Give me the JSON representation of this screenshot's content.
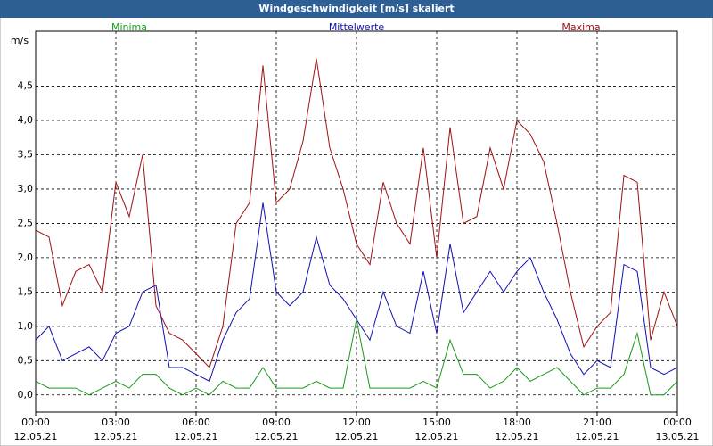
{
  "chart_data": {
    "type": "line",
    "title": "Windgeschwindigkeit [m/s] skaliert",
    "y_label": "m/s",
    "x": [
      0,
      0.5,
      1,
      1.5,
      2,
      2.5,
      3,
      3.5,
      4,
      4.5,
      5,
      5.5,
      6,
      6.5,
      7,
      7.5,
      8,
      8.5,
      9,
      9.5,
      10,
      10.5,
      11,
      11.5,
      12,
      12.5,
      13,
      13.5,
      14,
      14.5,
      15,
      15.5,
      16,
      16.5,
      17,
      17.5,
      18,
      18.5,
      19,
      19.5,
      20,
      20.5,
      21,
      21.5,
      22,
      22.5,
      23,
      23.5,
      24
    ],
    "series": [
      {
        "name": "Minima",
        "color": "#1a9a1a",
        "values": [
          0.2,
          0.1,
          0.1,
          0.1,
          0.0,
          0.1,
          0.2,
          0.1,
          0.3,
          0.3,
          0.1,
          0.0,
          0.1,
          0.0,
          0.2,
          0.1,
          0.1,
          0.4,
          0.1,
          0.1,
          0.1,
          0.2,
          0.1,
          0.1,
          1.1,
          0.1,
          0.1,
          0.1,
          0.1,
          0.2,
          0.1,
          0.8,
          0.3,
          0.3,
          0.1,
          0.2,
          0.4,
          0.2,
          0.3,
          0.4,
          0.2,
          0.0,
          0.1,
          0.1,
          0.3,
          0.9,
          0.0,
          0.0,
          0.2
        ]
      },
      {
        "name": "Mittelwerte",
        "color": "#1010b0",
        "values": [
          0.8,
          1.0,
          0.5,
          0.6,
          0.7,
          0.5,
          0.9,
          1.0,
          1.5,
          1.6,
          0.4,
          0.4,
          0.3,
          0.2,
          0.8,
          1.2,
          1.4,
          2.8,
          1.5,
          1.3,
          1.5,
          2.3,
          1.6,
          1.4,
          1.1,
          0.8,
          1.5,
          1.0,
          0.9,
          1.8,
          0.9,
          2.2,
          1.2,
          1.5,
          1.8,
          1.5,
          1.8,
          2.0,
          1.5,
          1.1,
          0.6,
          0.3,
          0.5,
          0.4,
          1.9,
          1.8,
          0.4,
          0.3,
          0.4
        ]
      },
      {
        "name": "Maxima",
        "color": "#a01010",
        "values": [
          2.4,
          2.3,
          1.3,
          1.8,
          1.9,
          1.5,
          3.1,
          2.6,
          3.5,
          1.3,
          0.9,
          0.8,
          0.6,
          0.4,
          1.0,
          2.5,
          2.8,
          4.8,
          2.8,
          3.0,
          3.7,
          4.9,
          3.6,
          3.0,
          2.2,
          1.9,
          3.1,
          2.5,
          2.2,
          3.6,
          2.0,
          3.9,
          2.5,
          2.6,
          3.6,
          3.0,
          4.0,
          3.8,
          3.4,
          2.5,
          1.5,
          0.7,
          1.0,
          1.2,
          3.2,
          3.1,
          0.8,
          1.5,
          1.0
        ]
      }
    ],
    "xlim": [
      0,
      24
    ],
    "xticks": [
      {
        "value": 0,
        "label": "00:00"
      },
      {
        "value": 3,
        "label": "03:00"
      },
      {
        "value": 6,
        "label": "06:00"
      },
      {
        "value": 9,
        "label": "09:00"
      },
      {
        "value": 12,
        "label": "12:00"
      },
      {
        "value": 15,
        "label": "15:00"
      },
      {
        "value": 18,
        "label": "18:00"
      },
      {
        "value": 21,
        "label": "21:00"
      },
      {
        "value": 24,
        "label": "00:00"
      }
    ],
    "xtick_dates": [
      "12.05.21",
      "12.05.21",
      "12.05.21",
      "12.05.21",
      "12.05.21",
      "12.05.21",
      "12.05.21",
      "12.05.21",
      "13.05.21"
    ],
    "ylim": [
      -0.25,
      5.3
    ],
    "yticks": [
      {
        "value": 0,
        "label": "0,0"
      },
      {
        "value": 0.5,
        "label": "0,5"
      },
      {
        "value": 1,
        "label": "1,0"
      },
      {
        "value": 1.5,
        "label": "1,5"
      },
      {
        "value": 2,
        "label": "2,0"
      },
      {
        "value": 2.5,
        "label": "2,5"
      },
      {
        "value": 3,
        "label": "3,0"
      },
      {
        "value": 3.5,
        "label": "3,5"
      },
      {
        "value": 4,
        "label": "4,0"
      },
      {
        "value": 4.5,
        "label": "4,5"
      }
    ],
    "grid": true
  }
}
